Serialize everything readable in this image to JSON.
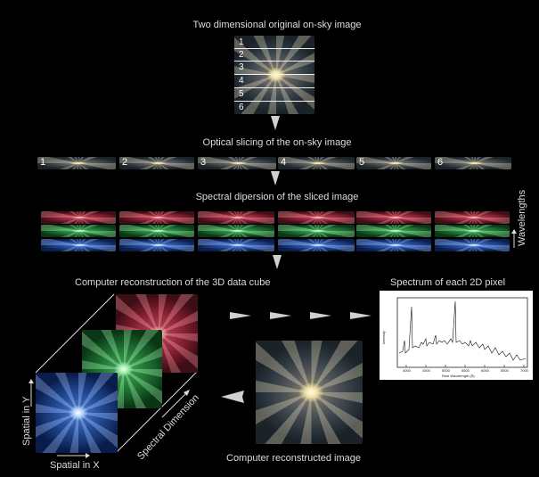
{
  "labels": {
    "top_title": "Two dimensional original on-sky image",
    "slicing": "Optical slicing of the on-sky image",
    "dispersion": "Spectral dipersion of the sliced image",
    "reconstruction": "Computer reconstruction of the 3D data cube",
    "spectrum": "Spectrum of each 2D pixel",
    "wavelengths": "Wavelengths",
    "spatial_y": "Spatial in Y",
    "spatial_x": "Spatial in X",
    "spectral_dimension": "Spectral Dimension",
    "reconstructed": "Computer reconstructed image"
  },
  "slices": [
    "1",
    "2",
    "3",
    "4",
    "5",
    "6"
  ],
  "spectrum_plot": {
    "ylabel": "Intensity",
    "xlabel": "Rest Wavelength (Å)",
    "xticks": [
      "4000",
      "4500",
      "5000",
      "5500",
      "6000",
      "6500",
      "7000"
    ]
  },
  "colors": {
    "background": "#000000",
    "red_band": "#b03048",
    "green_band": "#2e8a44",
    "blue_band": "#2e5cb0",
    "arrow": "#cfcfcf"
  }
}
